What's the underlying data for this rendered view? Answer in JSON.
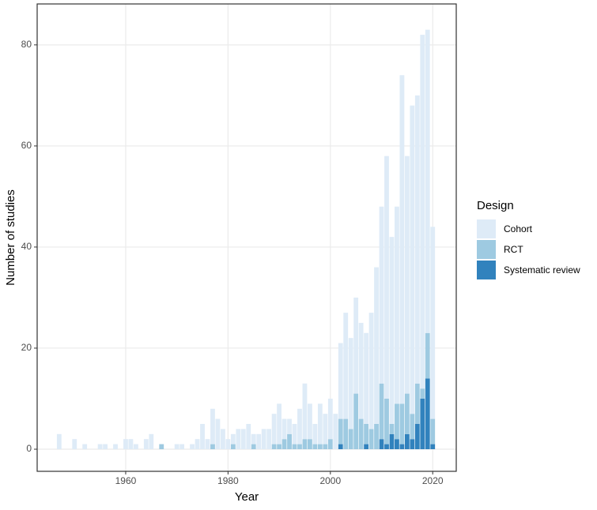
{
  "chart_data": {
    "type": "stacked-bar",
    "x_label": "Year",
    "y_label": "Number of studies",
    "legend_title": "Design",
    "x": [
      1947,
      1948,
      1949,
      1950,
      1951,
      1952,
      1953,
      1954,
      1955,
      1956,
      1957,
      1958,
      1959,
      1960,
      1961,
      1962,
      1963,
      1964,
      1965,
      1966,
      1967,
      1968,
      1969,
      1970,
      1971,
      1972,
      1973,
      1974,
      1975,
      1976,
      1977,
      1978,
      1979,
      1980,
      1981,
      1982,
      1983,
      1984,
      1985,
      1986,
      1987,
      1988,
      1989,
      1990,
      1991,
      1992,
      1993,
      1994,
      1995,
      1996,
      1997,
      1998,
      1999,
      2000,
      2001,
      2002,
      2003,
      2004,
      2005,
      2006,
      2007,
      2008,
      2009,
      2010,
      2011,
      2012,
      2013,
      2014,
      2015,
      2016,
      2017,
      2018,
      2019,
      2020
    ],
    "series": [
      {
        "name": "Cohort",
        "color": "#deebf7",
        "values": [
          3,
          0,
          0,
          2,
          0,
          1,
          0,
          0,
          1,
          1,
          0,
          1,
          0,
          2,
          2,
          1,
          0,
          2,
          3,
          0,
          0,
          0,
          0,
          1,
          1,
          0,
          1,
          2,
          5,
          2,
          7,
          6,
          4,
          2,
          2,
          4,
          4,
          5,
          2,
          3,
          4,
          4,
          6,
          8,
          4,
          3,
          4,
          7,
          11,
          7,
          4,
          8,
          6,
          8,
          7,
          15,
          21,
          18,
          19,
          19,
          18,
          23,
          31,
          35,
          48,
          37,
          39,
          65,
          47,
          61,
          57,
          70,
          60,
          38
        ]
      },
      {
        "name": "RCT",
        "color": "#9ecae1",
        "values": [
          0,
          0,
          0,
          0,
          0,
          0,
          0,
          0,
          0,
          0,
          0,
          0,
          0,
          0,
          0,
          0,
          0,
          0,
          0,
          0,
          1,
          0,
          0,
          0,
          0,
          0,
          0,
          0,
          0,
          0,
          1,
          0,
          0,
          0,
          1,
          0,
          0,
          0,
          1,
          0,
          0,
          0,
          1,
          1,
          2,
          3,
          1,
          1,
          2,
          2,
          1,
          1,
          1,
          2,
          0,
          5,
          6,
          4,
          11,
          6,
          4,
          4,
          5,
          11,
          9,
          2,
          7,
          8,
          8,
          5,
          8,
          2,
          9,
          5
        ]
      },
      {
        "name": "Systematic review",
        "color": "#3182bd",
        "values": [
          0,
          0,
          0,
          0,
          0,
          0,
          0,
          0,
          0,
          0,
          0,
          0,
          0,
          0,
          0,
          0,
          0,
          0,
          0,
          0,
          0,
          0,
          0,
          0,
          0,
          0,
          0,
          0,
          0,
          0,
          0,
          0,
          0,
          0,
          0,
          0,
          0,
          0,
          0,
          0,
          0,
          0,
          0,
          0,
          0,
          0,
          0,
          0,
          0,
          0,
          0,
          0,
          0,
          0,
          0,
          1,
          0,
          0,
          0,
          0,
          1,
          0,
          0,
          2,
          1,
          3,
          2,
          1,
          3,
          2,
          5,
          10,
          14,
          1
        ]
      }
    ],
    "xlim": [
      1942.7,
      2024.6
    ],
    "xticks": [
      1960,
      1980,
      2000,
      2020
    ],
    "ylim": [
      -4.375,
      88.1
    ],
    "yticks": [
      0,
      20,
      40,
      60,
      80
    ],
    "grid": true
  }
}
